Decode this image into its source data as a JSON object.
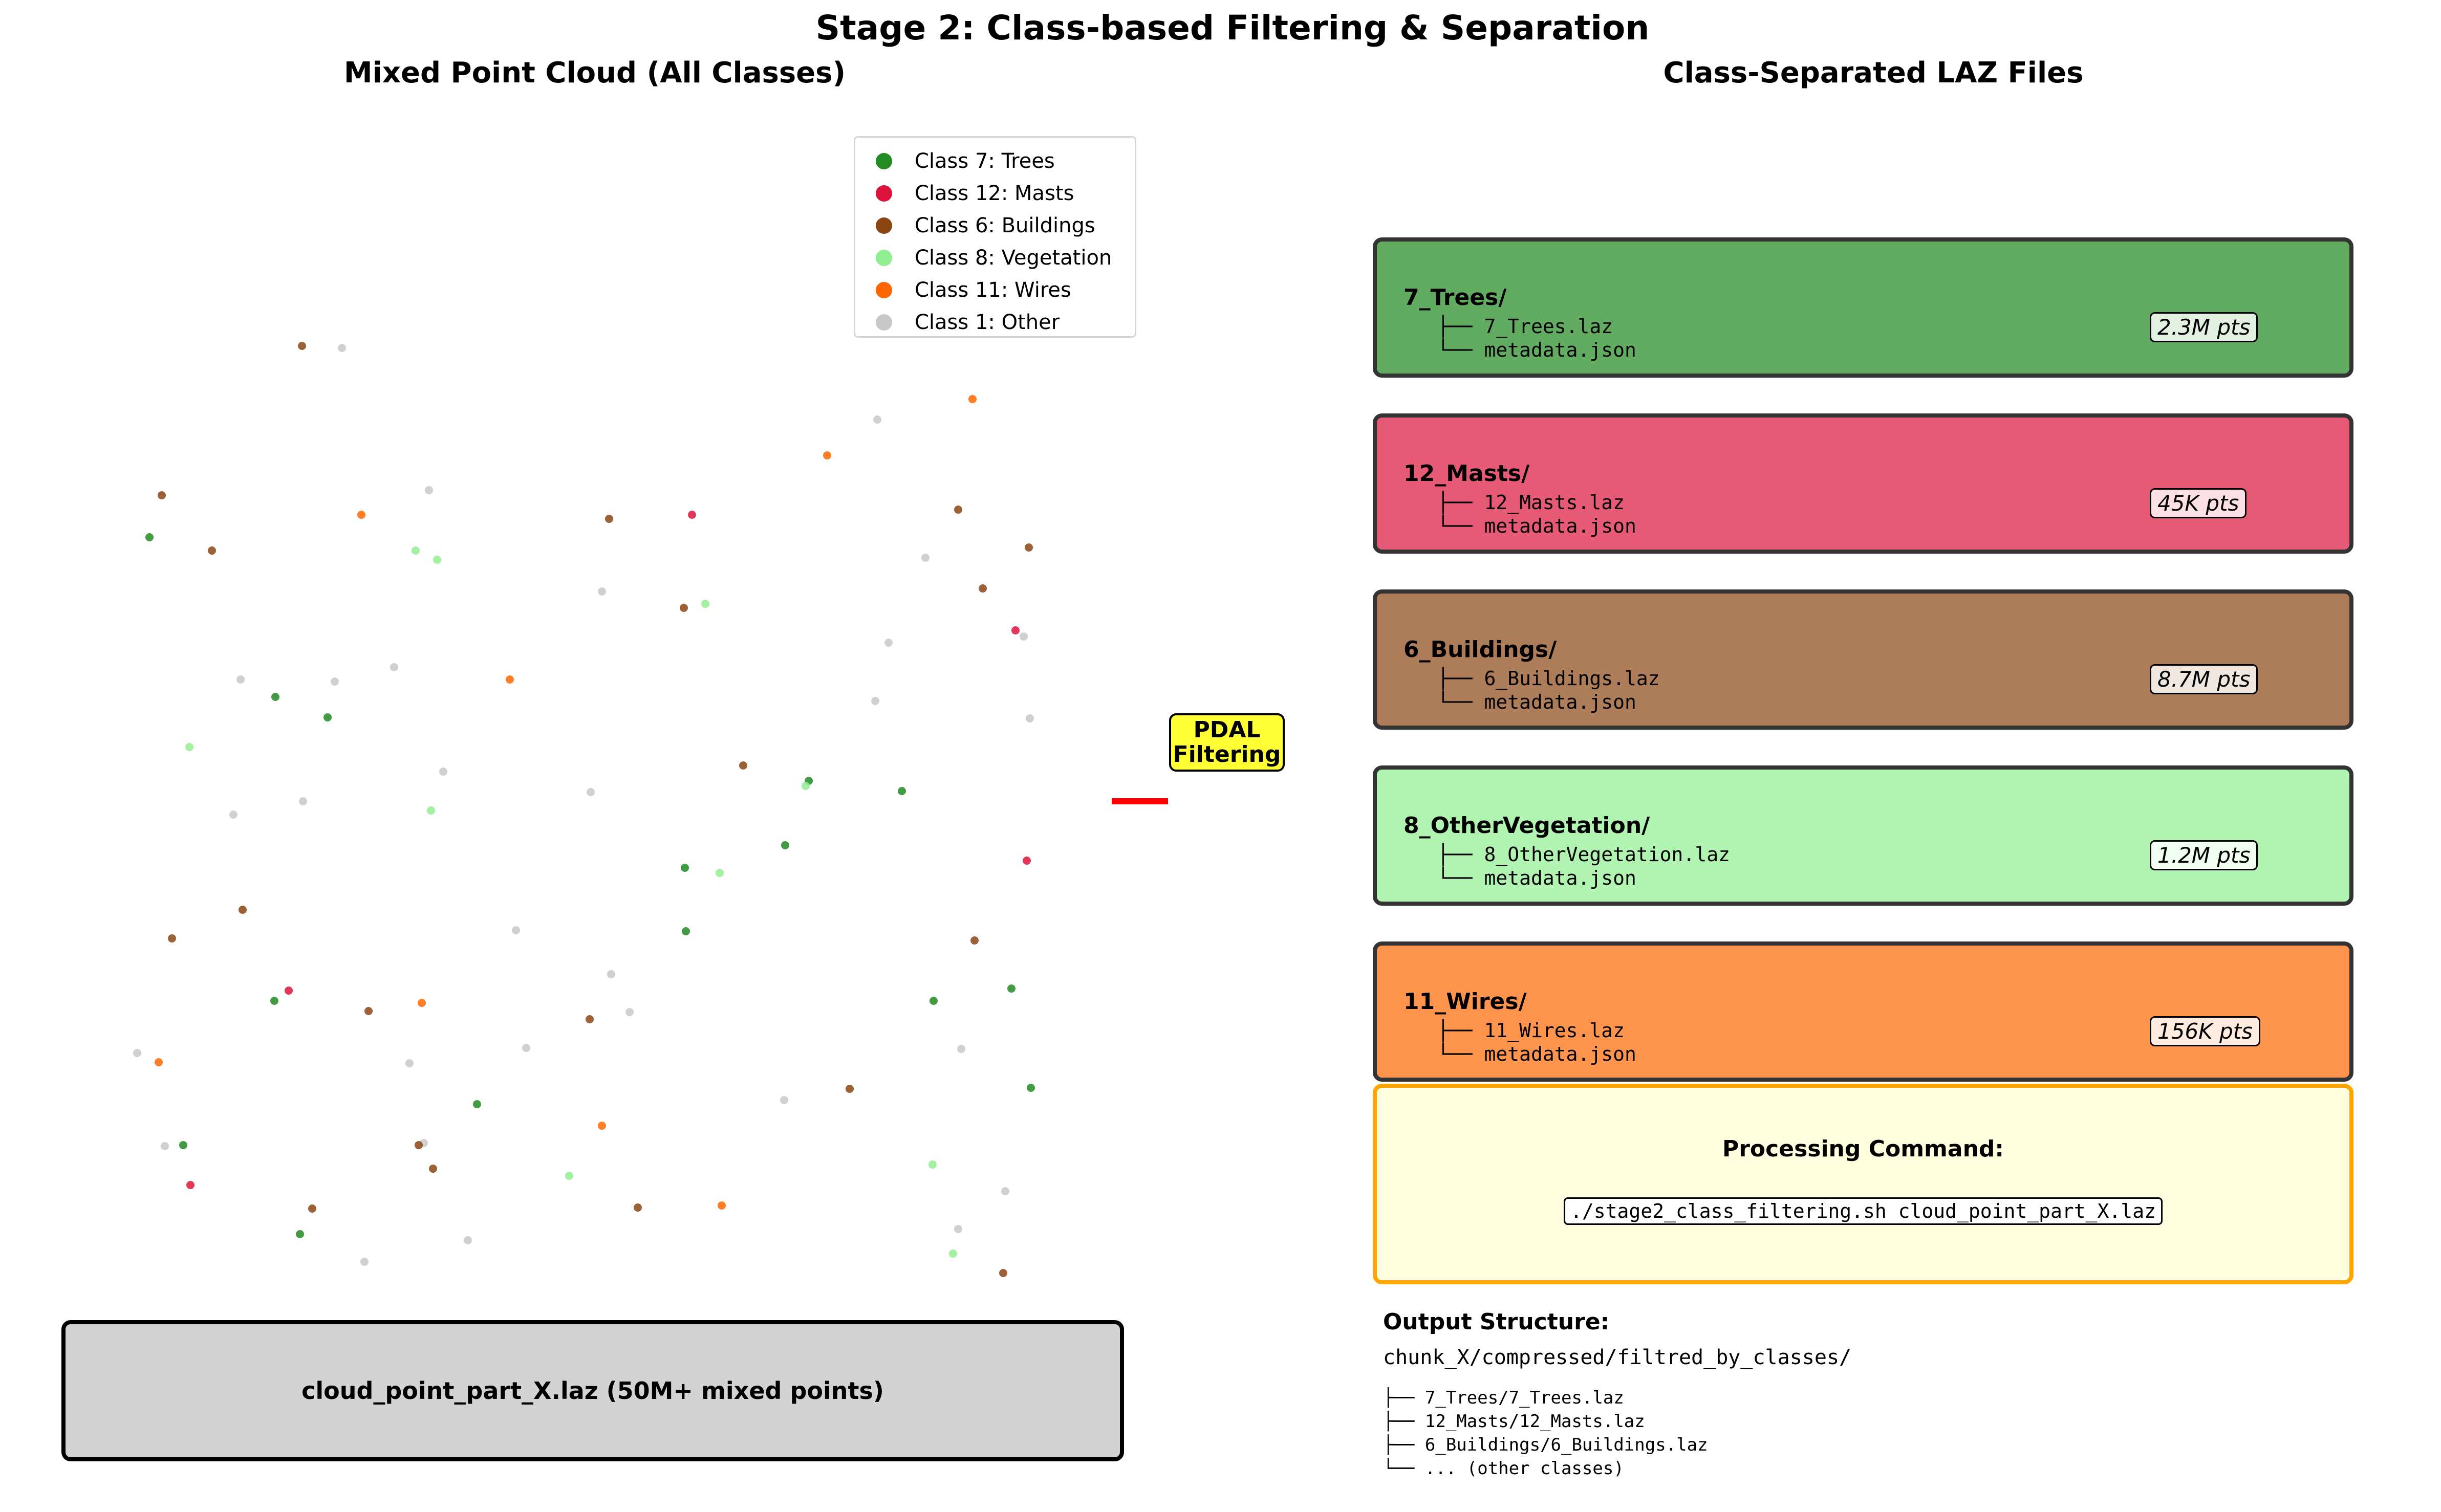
{
  "title": "Stage 2: Class-based Filtering & Separation",
  "left_panel": {
    "title": "Mixed Point Cloud (All Classes)",
    "legend": [
      {
        "label": "Class 7: Trees",
        "color": "#228b22"
      },
      {
        "label": "Class 12: Masts",
        "color": "#dc143c"
      },
      {
        "label": "Class 6: Buildings",
        "color": "#8b4513"
      },
      {
        "label": "Class 8: Vegetation",
        "color": "#90ee90"
      },
      {
        "label": "Class 11: Wires",
        "color": "#ff6600"
      },
      {
        "label": "Class 1: Other",
        "color": "#c8c8c8"
      }
    ],
    "source_file": "cloud_point_part_X.laz (50M+ mixed points)"
  },
  "arrow": {
    "label_line1": "PDAL",
    "label_line2": "Filtering",
    "color": "#ff0000"
  },
  "right_panel": {
    "title": "Class-Separated LAZ Files",
    "classes": [
      {
        "folder": "7_Trees/",
        "file": "├── 7_Trees.laz",
        "meta": "└── metadata.json",
        "points": "2.3M pts",
        "color": "#62ac62"
      },
      {
        "folder": "12_Masts/",
        "file": "├── 12_Masts.laz",
        "meta": "└── metadata.json",
        "points": "45K pts",
        "color": "#e65a75"
      },
      {
        "folder": "6_Buildings/",
        "file": "├── 6_Buildings.laz",
        "meta": "└── metadata.json",
        "points": "8.7M pts",
        "color": "#ad7c58"
      },
      {
        "folder": "8_OtherVegetation/",
        "file": "├── 8_OtherVegetation.laz",
        "meta": "└── metadata.json",
        "points": "1.2M pts",
        "color": "#b1f4b1"
      },
      {
        "folder": "11_Wires/",
        "file": "├── 11_Wires.laz",
        "meta": "└── metadata.json",
        "points": "156K pts",
        "color": "#ff944d"
      }
    ],
    "command": {
      "title": "Processing Command:",
      "code": "./stage2_class_filtering.sh cloud_point_part_X.laz"
    },
    "output": {
      "title": "Output Structure:",
      "path": "chunk_X/compressed/filtred_by_classes/",
      "lines": [
        "├── 7_Trees/7_Trees.laz",
        "├── 12_Masts/12_Masts.laz",
        "├── 6_Buildings/6_Buildings.laz",
        "└── ... (other classes)"
      ]
    }
  },
  "points": [
    [
      590,
      676,
      2
    ],
    [
      668,
      680,
      5
    ],
    [
      316,
      968,
      2
    ],
    [
      292,
      1050,
      0
    ],
    [
      414,
      1076,
      2
    ],
    [
      706,
      1006,
      4
    ],
    [
      838,
      958,
      5
    ],
    [
      812,
      1076,
      3
    ],
    [
      854,
      1094,
      3
    ],
    [
      1190,
      1014,
      2
    ],
    [
      1352,
      1006,
      1
    ],
    [
      1900,
      780,
      4
    ],
    [
      1714,
      820,
      5
    ],
    [
      1616,
      890,
      4
    ],
    [
      1872,
      996,
      2
    ],
    [
      2010,
      1070,
      2
    ],
    [
      1808,
      1090,
      5
    ],
    [
      1920,
      1150,
      2
    ],
    [
      1336,
      1188,
      2
    ],
    [
      1378,
      1180,
      3
    ],
    [
      1176,
      1156,
      5
    ],
    [
      1984,
      1232,
      1
    ],
    [
      2000,
      1244,
      5
    ],
    [
      1736,
      1256,
      5
    ],
    [
      1710,
      1370,
      5
    ],
    [
      2012,
      1404,
      5
    ],
    [
      470,
      1328,
      5
    ],
    [
      538,
      1362,
      0
    ],
    [
      654,
      1332,
      5
    ],
    [
      640,
      1402,
      0
    ],
    [
      770,
      1304,
      5
    ],
    [
      996,
      1328,
      4
    ],
    [
      370,
      1460,
      3
    ],
    [
      866,
      1508,
      5
    ],
    [
      842,
      1584,
      3
    ],
    [
      592,
      1566,
      5
    ],
    [
      456,
      1592,
      5
    ],
    [
      1452,
      1496,
      2
    ],
    [
      1580,
      1526,
      0
    ],
    [
      1574,
      1536,
      3
    ],
    [
      1762,
      1546,
      0
    ],
    [
      1154,
      1548,
      5
    ],
    [
      1534,
      1652,
      0
    ],
    [
      1338,
      1696,
      0
    ],
    [
      1406,
      1706,
      3
    ],
    [
      2006,
      1682,
      1
    ],
    [
      474,
      1778,
      2
    ],
    [
      336,
      1834,
      2
    ],
    [
      1340,
      1820,
      0
    ],
    [
      1008,
      1818,
      5
    ],
    [
      1194,
      1904,
      5
    ],
    [
      1230,
      1978,
      5
    ],
    [
      1904,
      1838,
      2
    ],
    [
      1976,
      1932,
      0
    ],
    [
      1824,
      1956,
      0
    ],
    [
      564,
      1936,
      1
    ],
    [
      536,
      1956,
      0
    ],
    [
      720,
      1976,
      2
    ],
    [
      824,
      1960,
      4
    ],
    [
      1152,
      1992,
      2
    ],
    [
      1028,
      2048,
      5
    ],
    [
      800,
      2078,
      5
    ],
    [
      268,
      2058,
      5
    ],
    [
      310,
      2076,
      4
    ],
    [
      1660,
      2128,
      2
    ],
    [
      2014,
      2126,
      0
    ],
    [
      1878,
      2050,
      5
    ],
    [
      932,
      2158,
      0
    ],
    [
      1532,
      2150,
      5
    ],
    [
      1176,
      2200,
      4
    ],
    [
      322,
      2240,
      5
    ],
    [
      358,
      2238,
      0
    ],
    [
      828,
      2234,
      5
    ],
    [
      818,
      2238,
      2
    ],
    [
      846,
      2284,
      2
    ],
    [
      372,
      2316,
      1
    ],
    [
      1112,
      2298,
      3
    ],
    [
      1822,
      2276,
      3
    ],
    [
      1964,
      2328,
      5
    ],
    [
      1246,
      2360,
      2
    ],
    [
      1410,
      2356,
      4
    ],
    [
      610,
      2362,
      2
    ],
    [
      586,
      2412,
      0
    ],
    [
      712,
      2466,
      5
    ],
    [
      914,
      2424,
      5
    ],
    [
      1872,
      2402,
      5
    ],
    [
      1862,
      2450,
      3
    ],
    [
      1960,
      2488,
      2
    ]
  ]
}
